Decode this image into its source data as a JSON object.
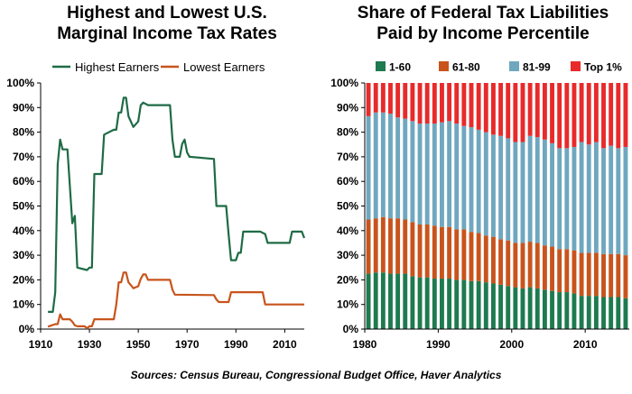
{
  "chart_data": [
    {
      "type": "line",
      "title_line1": "Highest and Lowest U.S.",
      "title_line2": "Marginal Income Tax Rates",
      "xlim": [
        1910,
        2018
      ],
      "ylim": [
        0,
        100
      ],
      "x_ticks": [
        1910,
        1930,
        1950,
        1970,
        1990,
        2010
      ],
      "y_ticks": [
        "0%",
        "10%",
        "20%",
        "30%",
        "40%",
        "50%",
        "60%",
        "70%",
        "80%",
        "90%",
        "100%"
      ],
      "legend_position": "top",
      "series": [
        {
          "name": "Highest Earners",
          "color": "#1e6b45",
          "points": [
            [
              1913,
              7
            ],
            [
              1915,
              7
            ],
            [
              1916,
              15
            ],
            [
              1917,
              67
            ],
            [
              1918,
              77
            ],
            [
              1919,
              73
            ],
            [
              1921,
              73
            ],
            [
              1922,
              58
            ],
            [
              1923,
              43
            ],
            [
              1924,
              46
            ],
            [
              1925,
              25
            ],
            [
              1929,
              24
            ],
            [
              1930,
              25
            ],
            [
              1931,
              25
            ],
            [
              1932,
              63
            ],
            [
              1935,
              63
            ],
            [
              1936,
              79
            ],
            [
              1940,
              81
            ],
            [
              1941,
              81
            ],
            [
              1942,
              88
            ],
            [
              1943,
              88
            ],
            [
              1944,
              94
            ],
            [
              1945,
              94
            ],
            [
              1946,
              86.45
            ],
            [
              1948,
              82.13
            ],
            [
              1950,
              84.36
            ],
            [
              1951,
              91
            ],
            [
              1952,
              92
            ],
            [
              1954,
              91
            ],
            [
              1963,
              91
            ],
            [
              1964,
              77
            ],
            [
              1965,
              70
            ],
            [
              1967,
              70
            ],
            [
              1968,
              75.25
            ],
            [
              1969,
              77
            ],
            [
              1970,
              71.75
            ],
            [
              1971,
              70
            ],
            [
              1981,
              69.13
            ],
            [
              1982,
              50
            ],
            [
              1986,
              50
            ],
            [
              1987,
              38.5
            ],
            [
              1988,
              28
            ],
            [
              1990,
              28
            ],
            [
              1991,
              31
            ],
            [
              1992,
              31
            ],
            [
              1993,
              39.6
            ],
            [
              2000,
              39.6
            ],
            [
              2001,
              39.1
            ],
            [
              2002,
              38.6
            ],
            [
              2003,
              35
            ],
            [
              2012,
              35
            ],
            [
              2013,
              39.6
            ],
            [
              2017,
              39.6
            ],
            [
              2018,
              37
            ]
          ]
        },
        {
          "name": "Lowest Earners",
          "color": "#c8541c",
          "points": [
            [
              1913,
              1
            ],
            [
              1916,
              2
            ],
            [
              1917,
              2
            ],
            [
              1918,
              6
            ],
            [
              1919,
              4
            ],
            [
              1922,
              4
            ],
            [
              1923,
              3
            ],
            [
              1924,
              1.5
            ],
            [
              1925,
              1.125
            ],
            [
              1928,
              1.125
            ],
            [
              1929,
              0.375
            ],
            [
              1930,
              1.125
            ],
            [
              1931,
              1.125
            ],
            [
              1932,
              4
            ],
            [
              1940,
              4
            ],
            [
              1941,
              10
            ],
            [
              1942,
              19
            ],
            [
              1943,
              19
            ],
            [
              1944,
              23
            ],
            [
              1945,
              23
            ],
            [
              1946,
              19
            ],
            [
              1948,
              16.6
            ],
            [
              1950,
              17.4
            ],
            [
              1951,
              20.4
            ],
            [
              1952,
              22.2
            ],
            [
              1953,
              22.2
            ],
            [
              1954,
              20
            ],
            [
              1963,
              20
            ],
            [
              1964,
              16
            ],
            [
              1965,
              14
            ],
            [
              1981,
              13.825
            ],
            [
              1982,
              12
            ],
            [
              1983,
              11
            ],
            [
              1987,
              11
            ],
            [
              1988,
              15
            ],
            [
              2001,
              15
            ],
            [
              2002,
              10
            ],
            [
              2018,
              10
            ]
          ]
        }
      ]
    },
    {
      "type": "bar",
      "stacked": true,
      "title_line1": "Share of Federal Tax Liabilities",
      "title_line2": "Paid by Income Percentile",
      "ylim": [
        0,
        100
      ],
      "y_ticks": [
        "0%",
        "10%",
        "20%",
        "30%",
        "40%",
        "50%",
        "60%",
        "70%",
        "80%",
        "90%",
        "100%"
      ],
      "x_ticks": [
        1980,
        1990,
        2000,
        2010
      ],
      "legend_position": "top",
      "categories": [
        1980,
        1981,
        1982,
        1983,
        1984,
        1985,
        1986,
        1987,
        1988,
        1989,
        1990,
        1991,
        1992,
        1993,
        1994,
        1995,
        1996,
        1997,
        1998,
        1999,
        2000,
        2001,
        2002,
        2003,
        2004,
        2005,
        2006,
        2007,
        2008,
        2009,
        2010,
        2011,
        2012,
        2013,
        2014,
        2015
      ],
      "series": [
        {
          "name": "1-60",
          "color": "#1e7a4f",
          "values": [
            22.5,
            23,
            23,
            22.5,
            22.5,
            22.5,
            21.5,
            21,
            21,
            20.5,
            20.5,
            20.5,
            20,
            20,
            19.5,
            19.5,
            19,
            18.5,
            18,
            17.5,
            17,
            16.5,
            17,
            16.5,
            16,
            15.5,
            15,
            15,
            14.5,
            13.5,
            13.5,
            13.5,
            13,
            13,
            13,
            12.5
          ]
        },
        {
          "name": "61-80",
          "color": "#c8541c",
          "values": [
            22,
            22,
            22.5,
            22.5,
            22.5,
            22,
            22,
            21.5,
            21.5,
            21.5,
            21,
            21,
            20.5,
            20.5,
            20,
            19.5,
            19,
            19,
            18.5,
            18.5,
            18,
            18.5,
            18.5,
            18.5,
            18,
            18,
            17.5,
            17.5,
            17.5,
            17.5,
            17.5,
            17.5,
            17.5,
            17.5,
            17.5,
            17.5
          ]
        },
        {
          "name": "81-99",
          "color": "#6fa7bf",
          "values": [
            42,
            43,
            42.5,
            42.5,
            41,
            41,
            41,
            41,
            41,
            41.5,
            42.5,
            43,
            43,
            42,
            42.5,
            42,
            42,
            41.5,
            42,
            41.5,
            41,
            41,
            43,
            43,
            43,
            42,
            41,
            41,
            42,
            45,
            44,
            45,
            43,
            44,
            43,
            44
          ]
        },
        {
          "name": "Top 1%",
          "color": "#e82a2a",
          "values": [
            13.5,
            12,
            12,
            12.5,
            14,
            14.5,
            15.5,
            16.5,
            16.5,
            16.5,
            16,
            15.5,
            16.5,
            17.5,
            18,
            19,
            20,
            21,
            21.5,
            22.5,
            24,
            24,
            21.5,
            22,
            23,
            24.5,
            26.5,
            26.5,
            26,
            24,
            25,
            24,
            26.5,
            25.5,
            26.5,
            26
          ]
        }
      ]
    }
  ],
  "source": "Sources: Census Bureau, Congressional Budget Office, Haver Analytics"
}
